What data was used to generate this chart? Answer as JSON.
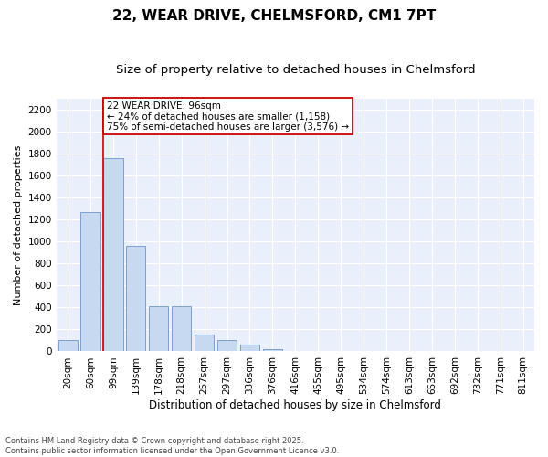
{
  "title": "22, WEAR DRIVE, CHELMSFORD, CM1 7PT",
  "subtitle": "Size of property relative to detached houses in Chelmsford",
  "xlabel": "Distribution of detached houses by size in Chelmsford",
  "ylabel": "Number of detached properties",
  "categories": [
    "20sqm",
    "60sqm",
    "99sqm",
    "139sqm",
    "178sqm",
    "218sqm",
    "257sqm",
    "297sqm",
    "336sqm",
    "376sqm",
    "416sqm",
    "455sqm",
    "495sqm",
    "534sqm",
    "574sqm",
    "613sqm",
    "653sqm",
    "692sqm",
    "732sqm",
    "771sqm",
    "811sqm"
  ],
  "values": [
    100,
    1270,
    1760,
    960,
    410,
    410,
    155,
    105,
    60,
    20,
    0,
    0,
    0,
    0,
    0,
    0,
    0,
    0,
    0,
    0,
    0
  ],
  "bar_color": "#c6d9f0",
  "bar_edge_color": "#7094c4",
  "bar_edge_width": 0.6,
  "vline_color": "#cc0000",
  "vline_x_index": 2,
  "annotation_text": "22 WEAR DRIVE: 96sqm\n← 24% of detached houses are smaller (1,158)\n75% of semi-detached houses are larger (3,576) →",
  "annotation_box_edgecolor": "#cc0000",
  "ylim": [
    0,
    2300
  ],
  "yticks": [
    0,
    200,
    400,
    600,
    800,
    1000,
    1200,
    1400,
    1600,
    1800,
    2000,
    2200
  ],
  "bg_color": "#eaf0fb",
  "grid_color": "#ffffff",
  "footnote": "Contains HM Land Registry data © Crown copyright and database right 2025.\nContains public sector information licensed under the Open Government Licence v3.0.",
  "title_fontsize": 11,
  "subtitle_fontsize": 9.5,
  "xlabel_fontsize": 8.5,
  "ylabel_fontsize": 8,
  "tick_fontsize": 7.5,
  "annotation_fontsize": 7.5,
  "footnote_fontsize": 6
}
